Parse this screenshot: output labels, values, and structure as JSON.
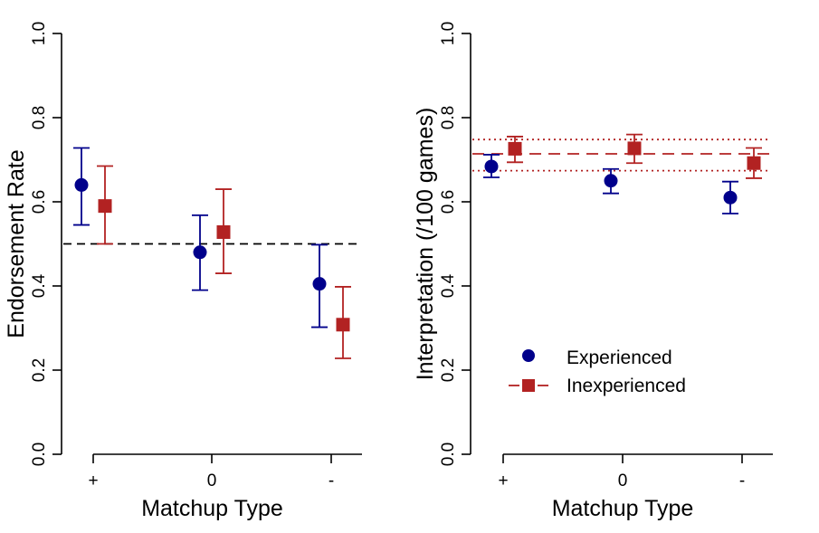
{
  "chart_data": [
    {
      "type": "scatter",
      "title": "",
      "xlabel": "Matchup Type",
      "ylabel": "Endorsement Rate",
      "categories": [
        "+",
        "0",
        "-"
      ],
      "ylim": [
        0,
        1
      ],
      "yticks": [
        "0.0",
        "0.2",
        "0.4",
        "0.6",
        "0.8",
        "1.0"
      ],
      "series": [
        {
          "name": "Experienced",
          "color": "#00008B",
          "marker": "circle",
          "values": [
            0.64,
            0.48,
            0.405
          ],
          "lower": [
            0.545,
            0.39,
            0.302
          ],
          "upper": [
            0.728,
            0.568,
            0.498
          ]
        },
        {
          "name": "Inexperienced",
          "color": "#B22222",
          "marker": "square",
          "values": [
            0.59,
            0.528,
            0.308
          ],
          "lower": [
            0.5,
            0.43,
            0.228
          ],
          "upper": [
            0.685,
            0.63,
            0.398
          ]
        }
      ],
      "reference_lines": [
        {
          "y": 0.5,
          "color": "#000000",
          "style": "dashed"
        }
      ],
      "grid": false
    },
    {
      "type": "scatter",
      "title": "",
      "xlabel": "Matchup Type",
      "ylabel": "Interpretation (/100 games)",
      "categories": [
        "+",
        "0",
        "-"
      ],
      "ylim": [
        0,
        1
      ],
      "yticks": [
        "0.0",
        "0.2",
        "0.4",
        "0.6",
        "0.8",
        "1.0"
      ],
      "series": [
        {
          "name": "Experienced",
          "color": "#00008B",
          "marker": "circle",
          "values": [
            0.684,
            0.65,
            0.61
          ],
          "lower": [
            0.658,
            0.62,
            0.572
          ],
          "upper": [
            0.712,
            0.678,
            0.648
          ]
        },
        {
          "name": "Inexperienced",
          "color": "#B22222",
          "marker": "square",
          "values": [
            0.726,
            0.727,
            0.692
          ],
          "lower": [
            0.694,
            0.692,
            0.656
          ],
          "upper": [
            0.755,
            0.76,
            0.728
          ]
        }
      ],
      "reference_lines": [
        {
          "y": 0.714,
          "color": "#B22222",
          "style": "dashed"
        },
        {
          "y": 0.748,
          "color": "#B22222",
          "style": "dotted"
        },
        {
          "y": 0.674,
          "color": "#B22222",
          "style": "dotted"
        }
      ],
      "legend": {
        "placement": "bottom-left",
        "entries": [
          "Experienced",
          "Inexperienced"
        ]
      },
      "grid": false
    }
  ]
}
